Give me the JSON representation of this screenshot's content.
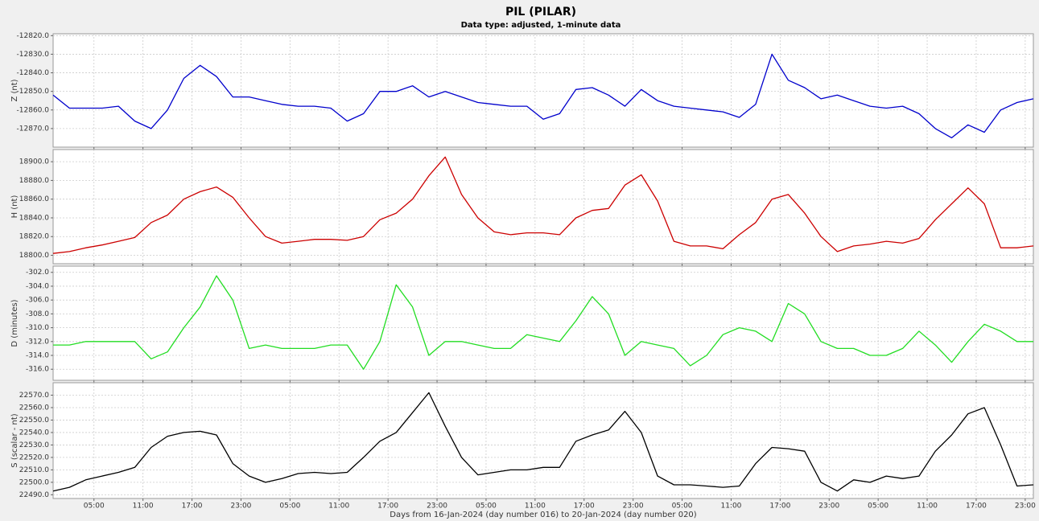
{
  "chart_data": {
    "type": "line",
    "title": "PIL (PILAR)",
    "subtitle": "Data type: adjusted, 1-minute data",
    "x_label": "Days from 16-Jan-2024 (day number 016) to 20-Jan-2024 (day number 020)",
    "grid": true,
    "x": [
      0,
      2,
      4,
      6,
      8,
      10,
      12,
      14,
      16,
      18,
      20,
      22,
      24,
      26,
      28,
      30,
      32,
      34,
      36,
      38,
      40,
      42,
      44,
      46,
      48,
      50,
      52,
      54,
      56,
      58,
      60,
      62,
      64,
      66,
      68,
      70,
      72,
      74,
      76,
      78,
      80,
      82,
      84,
      86,
      88,
      90,
      92,
      94,
      96,
      98,
      100,
      102,
      104,
      106,
      108,
      110,
      112,
      114,
      116,
      118,
      120
    ],
    "xlim": [
      0,
      120
    ],
    "xticks": [
      {
        "value": 5,
        "label": "05:00"
      },
      {
        "value": 11,
        "label": "11:00"
      },
      {
        "value": 17,
        "label": "17:00"
      },
      {
        "value": 23,
        "label": "23:00"
      },
      {
        "value": 29,
        "label": "05:00"
      },
      {
        "value": 35,
        "label": "11:00"
      },
      {
        "value": 41,
        "label": "17:00"
      },
      {
        "value": 47,
        "label": "23:00"
      },
      {
        "value": 53,
        "label": "05:00"
      },
      {
        "value": 59,
        "label": "11:00"
      },
      {
        "value": 65,
        "label": "17:00"
      },
      {
        "value": 71,
        "label": "23:00"
      },
      {
        "value": 77,
        "label": "05:00"
      },
      {
        "value": 83,
        "label": "11:00"
      },
      {
        "value": 89,
        "label": "17:00"
      },
      {
        "value": 95,
        "label": "23:00"
      },
      {
        "value": 101,
        "label": "05:00"
      },
      {
        "value": 107,
        "label": "11:00"
      },
      {
        "value": 113,
        "label": "17:00"
      },
      {
        "value": 119,
        "label": "23:00"
      }
    ],
    "panels": [
      {
        "y_label": "Z (nt)",
        "color": "#0000cc",
        "ylim": [
          -12880,
          -12819
        ],
        "yticks": [
          {
            "value": -12820,
            "label": "-12820.0"
          },
          {
            "value": -12830,
            "label": "-12830.0"
          },
          {
            "value": -12840,
            "label": "-12840.0"
          },
          {
            "value": -12850,
            "label": "-12850.0"
          },
          {
            "value": -12860,
            "label": "-12860.0"
          },
          {
            "value": -12870,
            "label": "-12870.0"
          }
        ],
        "values": [
          -12852,
          -12859,
          -12859,
          -12859,
          -12858,
          -12866,
          -12870,
          -12860,
          -12843,
          -12836,
          -12842,
          -12853,
          -12853,
          -12855,
          -12857,
          -12858,
          -12858,
          -12859,
          -12866,
          -12862,
          -12850,
          -12850,
          -12847,
          -12853,
          -12850,
          -12853,
          -12856,
          -12857,
          -12858,
          -12858,
          -12865,
          -12862,
          -12849,
          -12848,
          -12852,
          -12858,
          -12849,
          -12855,
          -12858,
          -12859,
          -12860,
          -12861,
          -12864,
          -12857,
          -12830,
          -12844,
          -12848,
          -12854,
          -12852,
          -12855,
          -12858,
          -12859,
          -12858,
          -12862,
          -12870,
          -12875,
          -12868,
          -12872,
          -12860,
          -12856,
          -12854
        ]
      },
      {
        "y_label": "H (nt)",
        "color": "#cc0000",
        "ylim": [
          18791,
          18913
        ],
        "yticks": [
          {
            "value": 18800,
            "label": "18800.0"
          },
          {
            "value": 18820,
            "label": "18820.0"
          },
          {
            "value": 18840,
            "label": "18840.0"
          },
          {
            "value": 18860,
            "label": "18860.0"
          },
          {
            "value": 18880,
            "label": "18880.0"
          },
          {
            "value": 18900,
            "label": "18900.0"
          }
        ],
        "values": [
          18802,
          18804,
          18808,
          18811,
          18815,
          18819,
          18835,
          18843,
          18860,
          18868,
          18873,
          18862,
          18840,
          18820,
          18813,
          18815,
          18817,
          18817,
          18816,
          18820,
          18838,
          18845,
          18860,
          18885,
          18905,
          18865,
          18840,
          18825,
          18822,
          18824,
          18824,
          18822,
          18840,
          18848,
          18850,
          18875,
          18886,
          18858,
          18815,
          18810,
          18810,
          18807,
          18822,
          18835,
          18860,
          18865,
          18845,
          18820,
          18804,
          18810,
          18812,
          18815,
          18813,
          18818,
          18838,
          18855,
          18872,
          18855,
          18808,
          18808,
          18810
        ]
      },
      {
        "y_label": "D (minutes)",
        "color": "#22dd22",
        "ylim": [
          -317.6,
          -301.1
        ],
        "yticks": [
          {
            "value": -302,
            "label": "-302.0"
          },
          {
            "value": -304,
            "label": "-304.0"
          },
          {
            "value": -306,
            "label": "-306.0"
          },
          {
            "value": -308,
            "label": "-308.0"
          },
          {
            "value": -310,
            "label": "-310.0"
          },
          {
            "value": -312,
            "label": "-312.0"
          },
          {
            "value": -314,
            "label": "-314.0"
          },
          {
            "value": -316,
            "label": "-316.0"
          }
        ],
        "values": [
          -312.5,
          -312.5,
          -312,
          -312,
          -312,
          -312,
          -314.5,
          -313.5,
          -310,
          -307,
          -302.5,
          -306,
          -313,
          -312.5,
          -313,
          -313,
          -313,
          -312.5,
          -312.5,
          -316,
          -312,
          -303.8,
          -307,
          -314,
          -312,
          -312,
          -312.5,
          -313,
          -313,
          -311,
          -311.5,
          -312,
          -309,
          -305.5,
          -308,
          -314,
          -312,
          -312.5,
          -313,
          -315.5,
          -314,
          -311,
          -310,
          -310.5,
          -312,
          -306.5,
          -308,
          -312,
          -313,
          -313,
          -314,
          -314,
          -313,
          -310.5,
          -312.5,
          -315,
          -312,
          -309.5,
          -310.5,
          -312,
          -312
        ]
      },
      {
        "y_label": "S (scalar - nt)",
        "color": "#000000",
        "ylim": [
          22487,
          22580
        ],
        "yticks": [
          {
            "value": 22490,
            "label": "22490.0"
          },
          {
            "value": 22500,
            "label": "22500.0"
          },
          {
            "value": 22510,
            "label": "22510.0"
          },
          {
            "value": 22520,
            "label": "22520.0"
          },
          {
            "value": 22530,
            "label": "22530.0"
          },
          {
            "value": 22540,
            "label": "22540.0"
          },
          {
            "value": 22550,
            "label": "22550.0"
          },
          {
            "value": 22560,
            "label": "22560.0"
          },
          {
            "value": 22570,
            "label": "22570.0"
          }
        ],
        "values": [
          22493,
          22496,
          22502,
          22505,
          22508,
          22512,
          22528,
          22537,
          22540,
          22541,
          22538,
          22515,
          22505,
          22500,
          22503,
          22507,
          22508,
          22507,
          22508,
          22520,
          22533,
          22540,
          22556,
          22572,
          22545,
          22520,
          22506,
          22508,
          22510,
          22510,
          22512,
          22512,
          22533,
          22538,
          22542,
          22557,
          22540,
          22505,
          22498,
          22498,
          22497,
          22496,
          22497,
          22515,
          22528,
          22527,
          22525,
          22500,
          22493,
          22502,
          22500,
          22505,
          22503,
          22505,
          22525,
          22538,
          22555,
          22560,
          22530,
          22497,
          22498
        ]
      }
    ]
  }
}
